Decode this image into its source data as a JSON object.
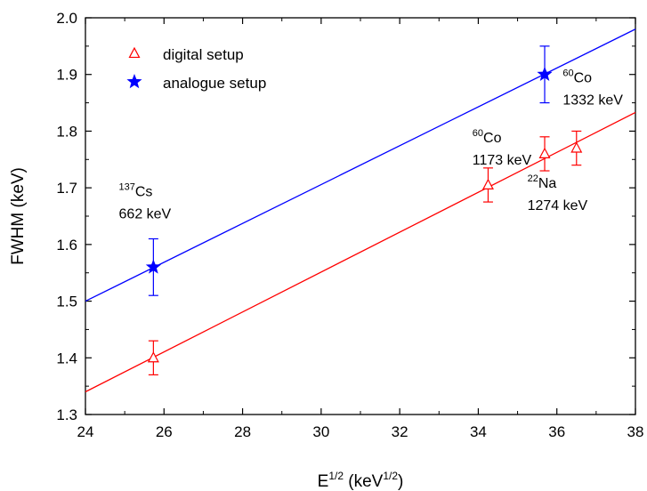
{
  "chart_data": {
    "type": "scatter",
    "title": "",
    "xlabel": {
      "base": "E",
      "sup": "1/2",
      "unit_open": " (keV",
      "unit_sup": "1/2",
      "unit_close": ")"
    },
    "ylabel": "FWHM (keV)",
    "xlim": [
      24,
      38
    ],
    "ylim": [
      1.3,
      2.0
    ],
    "xticks": [
      "24",
      "26",
      "28",
      "30",
      "32",
      "34",
      "36",
      "38"
    ],
    "yticks": [
      "1.3",
      "1.4",
      "1.5",
      "1.6",
      "1.7",
      "1.8",
      "1.9",
      "2.0"
    ],
    "grid": false,
    "legend_position": "top-left",
    "series": [
      {
        "name": "digital setup",
        "color": "#ff0000",
        "marker": "open-triangle",
        "points": [
          {
            "x": 25.73,
            "y": 1.4,
            "err": 0.03
          },
          {
            "x": 34.25,
            "y": 1.705,
            "err": 0.03
          },
          {
            "x": 35.69,
            "y": 1.76,
            "err": 0.03
          },
          {
            "x": 36.5,
            "y": 1.77,
            "err": 0.03
          }
        ],
        "fit": {
          "x": [
            24,
            38
          ],
          "y": [
            1.34,
            1.833
          ]
        }
      },
      {
        "name": "analogue setup",
        "color": "#0000ff",
        "marker": "filled-star",
        "points": [
          {
            "x": 25.73,
            "y": 1.56,
            "err": 0.05
          },
          {
            "x": 35.69,
            "y": 1.9,
            "err": 0.05
          }
        ],
        "fit": {
          "x": [
            24,
            38
          ],
          "y": [
            1.5,
            1.98
          ]
        }
      }
    ],
    "annotations": [
      {
        "sup": "137",
        "element": "Cs",
        "energy": "662 keV",
        "x": 24.85,
        "y": 1.685
      },
      {
        "sup": "60",
        "element": "Co",
        "energy": "1173 keV",
        "x": 33.85,
        "y": 1.78
      },
      {
        "sup": "60",
        "element": "Co",
        "energy": "1332 keV",
        "x": 36.15,
        "y": 1.886
      },
      {
        "sup": "22",
        "element": "Na",
        "energy": "1274 keV",
        "x": 35.25,
        "y": 1.7
      }
    ]
  }
}
